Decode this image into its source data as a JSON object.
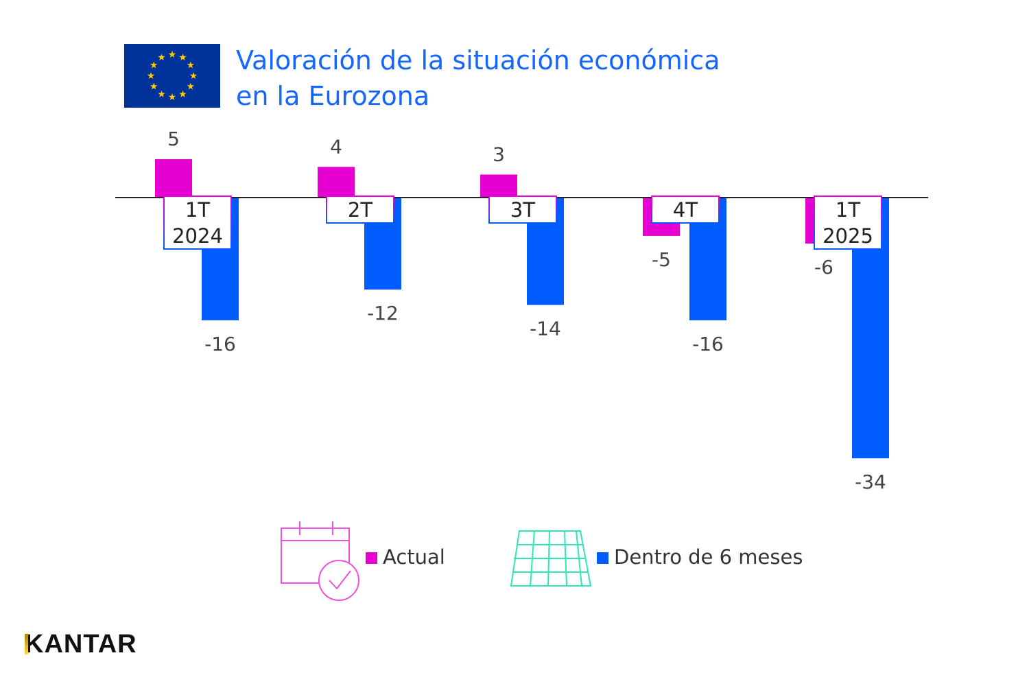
{
  "title_lines": [
    "Valoración de la situación económica",
    "en la Eurozona"
  ],
  "chart_data": {
    "type": "bar",
    "categories": [
      [
        "1T",
        "2024"
      ],
      [
        "2T"
      ],
      [
        "3T"
      ],
      [
        "4T"
      ],
      [
        "1T",
        "2025"
      ]
    ],
    "series": [
      {
        "name": "Actual",
        "values": [
          5,
          4,
          3,
          -5,
          -6
        ],
        "color": "#e600d2"
      },
      {
        "name": "Dentro de 6 meses",
        "values": [
          -16,
          -12,
          -14,
          -16,
          -34
        ],
        "color": "#005cff"
      }
    ],
    "grid": false,
    "legend": "bottom"
  },
  "legend": {
    "actual": "Actual",
    "future": "Dentro de 6 meses",
    "actual_icon": "calendar-check-icon",
    "future_icon": "solar-panel-icon"
  },
  "logo": "KANTAR",
  "colors": {
    "title": "#1565ff",
    "flag": "#003399",
    "stars": "#ffcc00",
    "future_icon": "#2ee6b8"
  }
}
